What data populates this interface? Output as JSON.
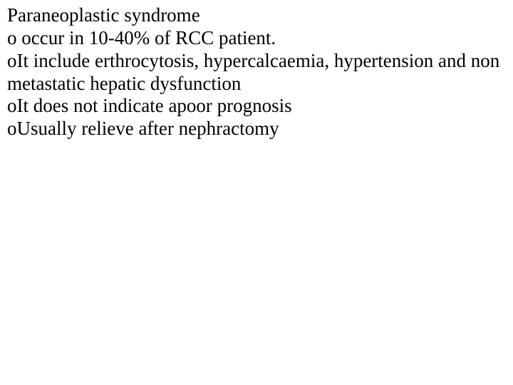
{
  "text_color": "#000000",
  "background_color": "#ffffff",
  "font_family": "Times New Roman",
  "font_size_pt": 20,
  "title": "Paraneoplastic syndrome",
  "bullets": {
    "b1": " occur in 10-40% of RCC patient.",
    "b2": "It include erthrocytosis, hypercalcaemia, hypertension and non metastatic hepatic dysfunction",
    "b3": "It does not indicate apoor prognosis",
    "b4": "Usually relieve after nephractomy"
  },
  "bullet_glyph": "o"
}
